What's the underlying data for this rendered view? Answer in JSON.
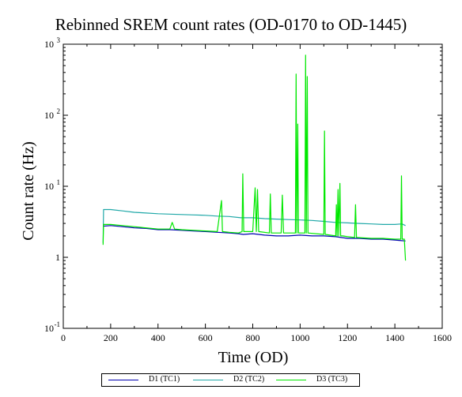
{
  "chart_data": {
    "type": "line",
    "title": "Rebinned SREM count rates (OD-0170 to OD-1445)",
    "xlabel": "Time (OD)",
    "ylabel": "Count rate (Hz)",
    "xlim": [
      0,
      1600
    ],
    "ylim": [
      0.1,
      1000
    ],
    "yscale": "log",
    "xticks": [
      "0",
      "200",
      "400",
      "600",
      "800",
      "1000",
      "1200",
      "1400",
      "1600"
    ],
    "yticks": [
      {
        "base": "10",
        "exp": "-1"
      },
      {
        "base": "1",
        "exp": ""
      },
      {
        "base": "10",
        "exp": "1"
      },
      {
        "base": "10",
        "exp": "2"
      },
      {
        "base": "10",
        "exp": "3"
      }
    ],
    "grid": false,
    "legend_position": "bottom",
    "series": [
      {
        "name": "D1 (TC1)",
        "color": "#0000b0",
        "points": [
          [
            170,
            2.75
          ],
          [
            200,
            2.8
          ],
          [
            250,
            2.7
          ],
          [
            300,
            2.6
          ],
          [
            350,
            2.55
          ],
          [
            400,
            2.45
          ],
          [
            450,
            2.45
          ],
          [
            500,
            2.4
          ],
          [
            550,
            2.35
          ],
          [
            600,
            2.3
          ],
          [
            650,
            2.25
          ],
          [
            700,
            2.2
          ],
          [
            740,
            2.15
          ],
          [
            760,
            2.1
          ],
          [
            800,
            2.15
          ],
          [
            850,
            2.05
          ],
          [
            900,
            2.0
          ],
          [
            950,
            2.0
          ],
          [
            1000,
            2.05
          ],
          [
            1050,
            2.0
          ],
          [
            1100,
            2.0
          ],
          [
            1150,
            1.95
          ],
          [
            1200,
            1.85
          ],
          [
            1250,
            1.85
          ],
          [
            1300,
            1.8
          ],
          [
            1350,
            1.8
          ],
          [
            1400,
            1.75
          ],
          [
            1445,
            1.7
          ]
        ]
      },
      {
        "name": "D2 (TC2)",
        "color": "#20a8a8",
        "points": [
          [
            168,
            1.6
          ],
          [
            170,
            4.7
          ],
          [
            200,
            4.7
          ],
          [
            250,
            4.5
          ],
          [
            300,
            4.3
          ],
          [
            350,
            4.2
          ],
          [
            400,
            4.1
          ],
          [
            450,
            4.05
          ],
          [
            500,
            4.0
          ],
          [
            550,
            3.95
          ],
          [
            600,
            3.9
          ],
          [
            650,
            3.8
          ],
          [
            700,
            3.75
          ],
          [
            750,
            3.6
          ],
          [
            800,
            3.6
          ],
          [
            850,
            3.5
          ],
          [
            900,
            3.45
          ],
          [
            950,
            3.4
          ],
          [
            1000,
            3.35
          ],
          [
            1050,
            3.3
          ],
          [
            1100,
            3.2
          ],
          [
            1150,
            3.1
          ],
          [
            1200,
            3.05
          ],
          [
            1250,
            3.0
          ],
          [
            1300,
            2.95
          ],
          [
            1350,
            2.9
          ],
          [
            1400,
            2.9
          ],
          [
            1430,
            2.95
          ],
          [
            1445,
            2.8
          ]
        ]
      },
      {
        "name": "D3 (TC3)",
        "color": "#00e800",
        "points": [
          [
            168,
            1.5
          ],
          [
            170,
            2.9
          ],
          [
            200,
            2.9
          ],
          [
            250,
            2.8
          ],
          [
            300,
            2.7
          ],
          [
            350,
            2.6
          ],
          [
            400,
            2.5
          ],
          [
            450,
            2.5
          ],
          [
            460,
            3.1
          ],
          [
            470,
            2.5
          ],
          [
            500,
            2.45
          ],
          [
            550,
            2.4
          ],
          [
            600,
            2.35
          ],
          [
            650,
            2.3
          ],
          [
            668,
            6.3
          ],
          [
            672,
            2.3
          ],
          [
            700,
            2.25
          ],
          [
            740,
            2.2
          ],
          [
            755,
            2.3
          ],
          [
            758,
            15
          ],
          [
            762,
            2.3
          ],
          [
            800,
            2.3
          ],
          [
            810,
            9.5
          ],
          [
            815,
            2.3
          ],
          [
            820,
            9.0
          ],
          [
            825,
            2.3
          ],
          [
            870,
            2.2
          ],
          [
            874,
            7.8
          ],
          [
            878,
            2.2
          ],
          [
            920,
            2.2
          ],
          [
            925,
            7.5
          ],
          [
            930,
            2.2
          ],
          [
            980,
            2.2
          ],
          [
            983,
            380
          ],
          [
            986,
            2.2
          ],
          [
            990,
            75
          ],
          [
            993,
            2.2
          ],
          [
            1020,
            2.2
          ],
          [
            1023,
            700
          ],
          [
            1026,
            2.2
          ],
          [
            1030,
            350
          ],
          [
            1033,
            2.2
          ],
          [
            1100,
            2.1
          ],
          [
            1103,
            60
          ],
          [
            1106,
            2.1
          ],
          [
            1150,
            2.0
          ],
          [
            1153,
            5.5
          ],
          [
            1156,
            2.0
          ],
          [
            1160,
            9.0
          ],
          [
            1163,
            2.0
          ],
          [
            1168,
            11
          ],
          [
            1171,
            2.0
          ],
          [
            1180,
            2.0
          ],
          [
            1200,
            1.95
          ],
          [
            1230,
            1.9
          ],
          [
            1234,
            5.5
          ],
          [
            1238,
            1.9
          ],
          [
            1300,
            1.85
          ],
          [
            1350,
            1.85
          ],
          [
            1400,
            1.8
          ],
          [
            1425,
            1.8
          ],
          [
            1428,
            14
          ],
          [
            1431,
            1.8
          ],
          [
            1440,
            1.8
          ],
          [
            1445,
            0.9
          ]
        ]
      }
    ]
  }
}
